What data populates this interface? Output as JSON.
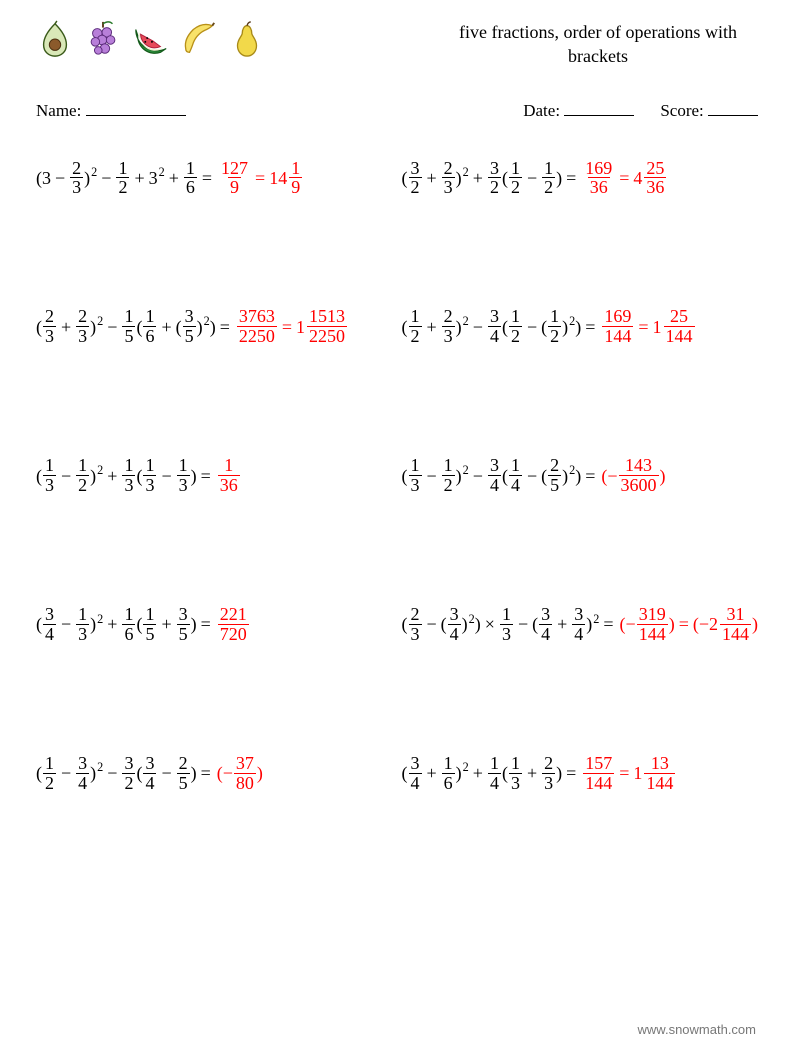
{
  "title_line1": "five fractions, order of operations with",
  "title_line2": "brackets",
  "labels": {
    "name": "Name:",
    "date": "Date:",
    "score": "Score:"
  },
  "ops": {
    "plus": "+",
    "minus": "−",
    "times": "×",
    "eq": "="
  },
  "footer": "www.snowmath.com",
  "colors": {
    "answer": "#ff0000",
    "text": "#000000"
  },
  "problems": [
    {
      "expr": [
        {
          "t": "txt",
          "v": "(3"
        },
        {
          "t": "op",
          "v": "minus"
        },
        {
          "t": "frac",
          "n": "2",
          "d": "3"
        },
        {
          "t": "txt",
          "v": ")"
        },
        {
          "t": "sup",
          "v": "2"
        },
        {
          "t": "op",
          "v": "minus"
        },
        {
          "t": "frac",
          "n": "1",
          "d": "2"
        },
        {
          "t": "op",
          "v": "plus"
        },
        {
          "t": "txt",
          "v": "3"
        },
        {
          "t": "sup",
          "v": "2"
        },
        {
          "t": "op",
          "v": "plus"
        },
        {
          "t": "frac",
          "n": "1",
          "d": "6"
        },
        {
          "t": "op",
          "v": "eq"
        }
      ],
      "ans": [
        {
          "t": "frac",
          "n": "127",
          "d": "9"
        },
        {
          "t": "op",
          "v": "eq"
        },
        {
          "t": "mix",
          "w": "14",
          "n": "1",
          "d": "9"
        }
      ]
    },
    {
      "expr": [
        {
          "t": "txt",
          "v": "("
        },
        {
          "t": "frac",
          "n": "3",
          "d": "2"
        },
        {
          "t": "op",
          "v": "plus"
        },
        {
          "t": "frac",
          "n": "2",
          "d": "3"
        },
        {
          "t": "txt",
          "v": ")"
        },
        {
          "t": "sup",
          "v": "2"
        },
        {
          "t": "op",
          "v": "plus"
        },
        {
          "t": "frac",
          "n": "3",
          "d": "2"
        },
        {
          "t": "txt",
          "v": "("
        },
        {
          "t": "frac",
          "n": "1",
          "d": "2"
        },
        {
          "t": "op",
          "v": "minus"
        },
        {
          "t": "frac",
          "n": "1",
          "d": "2"
        },
        {
          "t": "txt",
          "v": ")"
        },
        {
          "t": "op",
          "v": "eq"
        }
      ],
      "ans": [
        {
          "t": "frac",
          "n": "169",
          "d": "36"
        },
        {
          "t": "op",
          "v": "eq"
        },
        {
          "t": "mix",
          "w": "4",
          "n": "25",
          "d": "36"
        }
      ]
    },
    {
      "expr": [
        {
          "t": "txt",
          "v": "("
        },
        {
          "t": "frac",
          "n": "2",
          "d": "3"
        },
        {
          "t": "op",
          "v": "plus"
        },
        {
          "t": "frac",
          "n": "2",
          "d": "3"
        },
        {
          "t": "txt",
          "v": ")"
        },
        {
          "t": "sup",
          "v": "2"
        },
        {
          "t": "op",
          "v": "minus"
        },
        {
          "t": "frac",
          "n": "1",
          "d": "5"
        },
        {
          "t": "txt",
          "v": "("
        },
        {
          "t": "frac",
          "n": "1",
          "d": "6"
        },
        {
          "t": "op",
          "v": "plus"
        },
        {
          "t": "txt",
          "v": "("
        },
        {
          "t": "frac",
          "n": "3",
          "d": "5"
        },
        {
          "t": "txt",
          "v": ")"
        },
        {
          "t": "sup",
          "v": "2"
        },
        {
          "t": "txt",
          "v": ")"
        },
        {
          "t": "op",
          "v": "eq"
        }
      ],
      "ans": [
        {
          "t": "frac",
          "n": "3763",
          "d": "2250"
        },
        {
          "t": "op",
          "v": "eq"
        },
        {
          "t": "mix",
          "w": "1",
          "n": "1513",
          "d": "2250"
        }
      ]
    },
    {
      "expr": [
        {
          "t": "txt",
          "v": "("
        },
        {
          "t": "frac",
          "n": "1",
          "d": "2"
        },
        {
          "t": "op",
          "v": "plus"
        },
        {
          "t": "frac",
          "n": "2",
          "d": "3"
        },
        {
          "t": "txt",
          "v": ")"
        },
        {
          "t": "sup",
          "v": "2"
        },
        {
          "t": "op",
          "v": "minus"
        },
        {
          "t": "frac",
          "n": "3",
          "d": "4"
        },
        {
          "t": "txt",
          "v": "("
        },
        {
          "t": "frac",
          "n": "1",
          "d": "2"
        },
        {
          "t": "op",
          "v": "minus"
        },
        {
          "t": "txt",
          "v": "("
        },
        {
          "t": "frac",
          "n": "1",
          "d": "2"
        },
        {
          "t": "txt",
          "v": ")"
        },
        {
          "t": "sup",
          "v": "2"
        },
        {
          "t": "txt",
          "v": ")"
        },
        {
          "t": "op",
          "v": "eq"
        }
      ],
      "ans": [
        {
          "t": "frac",
          "n": "169",
          "d": "144"
        },
        {
          "t": "op",
          "v": "eq"
        },
        {
          "t": "mix",
          "w": "1",
          "n": "25",
          "d": "144"
        }
      ]
    },
    {
      "expr": [
        {
          "t": "txt",
          "v": "("
        },
        {
          "t": "frac",
          "n": "1",
          "d": "3"
        },
        {
          "t": "op",
          "v": "minus"
        },
        {
          "t": "frac",
          "n": "1",
          "d": "2"
        },
        {
          "t": "txt",
          "v": ")"
        },
        {
          "t": "sup",
          "v": "2"
        },
        {
          "t": "op",
          "v": "plus"
        },
        {
          "t": "frac",
          "n": "1",
          "d": "3"
        },
        {
          "t": "txt",
          "v": "("
        },
        {
          "t": "frac",
          "n": "1",
          "d": "3"
        },
        {
          "t": "op",
          "v": "minus"
        },
        {
          "t": "frac",
          "n": "1",
          "d": "3"
        },
        {
          "t": "txt",
          "v": ")"
        },
        {
          "t": "op",
          "v": "eq"
        }
      ],
      "ans": [
        {
          "t": "frac",
          "n": "1",
          "d": "36"
        }
      ]
    },
    {
      "expr": [
        {
          "t": "txt",
          "v": "("
        },
        {
          "t": "frac",
          "n": "1",
          "d": "3"
        },
        {
          "t": "op",
          "v": "minus"
        },
        {
          "t": "frac",
          "n": "1",
          "d": "2"
        },
        {
          "t": "txt",
          "v": ")"
        },
        {
          "t": "sup",
          "v": "2"
        },
        {
          "t": "op",
          "v": "minus"
        },
        {
          "t": "frac",
          "n": "3",
          "d": "4"
        },
        {
          "t": "txt",
          "v": "("
        },
        {
          "t": "frac",
          "n": "1",
          "d": "4"
        },
        {
          "t": "op",
          "v": "minus"
        },
        {
          "t": "txt",
          "v": "("
        },
        {
          "t": "frac",
          "n": "2",
          "d": "5"
        },
        {
          "t": "txt",
          "v": ")"
        },
        {
          "t": "sup",
          "v": "2"
        },
        {
          "t": "txt",
          "v": ")"
        },
        {
          "t": "op",
          "v": "eq"
        }
      ],
      "ans": [
        {
          "t": "txt",
          "v": "(−"
        },
        {
          "t": "frac",
          "n": "143",
          "d": "3600"
        },
        {
          "t": "txt",
          "v": ")"
        }
      ]
    },
    {
      "expr": [
        {
          "t": "txt",
          "v": "("
        },
        {
          "t": "frac",
          "n": "3",
          "d": "4"
        },
        {
          "t": "op",
          "v": "minus"
        },
        {
          "t": "frac",
          "n": "1",
          "d": "3"
        },
        {
          "t": "txt",
          "v": ")"
        },
        {
          "t": "sup",
          "v": "2"
        },
        {
          "t": "op",
          "v": "plus"
        },
        {
          "t": "frac",
          "n": "1",
          "d": "6"
        },
        {
          "t": "txt",
          "v": "("
        },
        {
          "t": "frac",
          "n": "1",
          "d": "5"
        },
        {
          "t": "op",
          "v": "plus"
        },
        {
          "t": "frac",
          "n": "3",
          "d": "5"
        },
        {
          "t": "txt",
          "v": ")"
        },
        {
          "t": "op",
          "v": "eq"
        }
      ],
      "ans": [
        {
          "t": "frac",
          "n": "221",
          "d": "720"
        }
      ]
    },
    {
      "expr": [
        {
          "t": "txt",
          "v": "("
        },
        {
          "t": "frac",
          "n": "2",
          "d": "3"
        },
        {
          "t": "op",
          "v": "minus"
        },
        {
          "t": "txt",
          "v": "("
        },
        {
          "t": "frac",
          "n": "3",
          "d": "4"
        },
        {
          "t": "txt",
          "v": ")"
        },
        {
          "t": "sup",
          "v": "2"
        },
        {
          "t": "txt",
          "v": ")"
        },
        {
          "t": "op",
          "v": "times"
        },
        {
          "t": "frac",
          "n": "1",
          "d": "3"
        },
        {
          "t": "op",
          "v": "minus"
        },
        {
          "t": "txt",
          "v": "("
        },
        {
          "t": "frac",
          "n": "3",
          "d": "4"
        },
        {
          "t": "op",
          "v": "plus"
        },
        {
          "t": "frac",
          "n": "3",
          "d": "4"
        },
        {
          "t": "txt",
          "v": ")"
        },
        {
          "t": "sup",
          "v": "2"
        },
        {
          "t": "op",
          "v": "eq"
        }
      ],
      "ans": [
        {
          "t": "txt",
          "v": "(−"
        },
        {
          "t": "frac",
          "n": "319",
          "d": "144"
        },
        {
          "t": "txt",
          "v": ")"
        },
        {
          "t": "op",
          "v": "eq"
        },
        {
          "t": "txt",
          "v": "(−"
        },
        {
          "t": "mix",
          "w": "2",
          "n": "31",
          "d": "144"
        },
        {
          "t": "txt",
          "v": ")"
        }
      ]
    },
    {
      "expr": [
        {
          "t": "txt",
          "v": "("
        },
        {
          "t": "frac",
          "n": "1",
          "d": "2"
        },
        {
          "t": "op",
          "v": "minus"
        },
        {
          "t": "frac",
          "n": "3",
          "d": "4"
        },
        {
          "t": "txt",
          "v": ")"
        },
        {
          "t": "sup",
          "v": "2"
        },
        {
          "t": "op",
          "v": "minus"
        },
        {
          "t": "frac",
          "n": "3",
          "d": "2"
        },
        {
          "t": "txt",
          "v": "("
        },
        {
          "t": "frac",
          "n": "3",
          "d": "4"
        },
        {
          "t": "op",
          "v": "minus"
        },
        {
          "t": "frac",
          "n": "2",
          "d": "5"
        },
        {
          "t": "txt",
          "v": ")"
        },
        {
          "t": "op",
          "v": "eq"
        }
      ],
      "ans": [
        {
          "t": "txt",
          "v": "(−"
        },
        {
          "t": "frac",
          "n": "37",
          "d": "80"
        },
        {
          "t": "txt",
          "v": ")"
        }
      ]
    },
    {
      "expr": [
        {
          "t": "txt",
          "v": "("
        },
        {
          "t": "frac",
          "n": "3",
          "d": "4"
        },
        {
          "t": "op",
          "v": "plus"
        },
        {
          "t": "frac",
          "n": "1",
          "d": "6"
        },
        {
          "t": "txt",
          "v": ")"
        },
        {
          "t": "sup",
          "v": "2"
        },
        {
          "t": "op",
          "v": "plus"
        },
        {
          "t": "frac",
          "n": "1",
          "d": "4"
        },
        {
          "t": "txt",
          "v": "("
        },
        {
          "t": "frac",
          "n": "1",
          "d": "3"
        },
        {
          "t": "op",
          "v": "plus"
        },
        {
          "t": "frac",
          "n": "2",
          "d": "3"
        },
        {
          "t": "txt",
          "v": ")"
        },
        {
          "t": "op",
          "v": "eq"
        }
      ],
      "ans": [
        {
          "t": "frac",
          "n": "157",
          "d": "144"
        },
        {
          "t": "op",
          "v": "eq"
        },
        {
          "t": "mix",
          "w": "1",
          "n": "13",
          "d": "144"
        }
      ]
    }
  ]
}
